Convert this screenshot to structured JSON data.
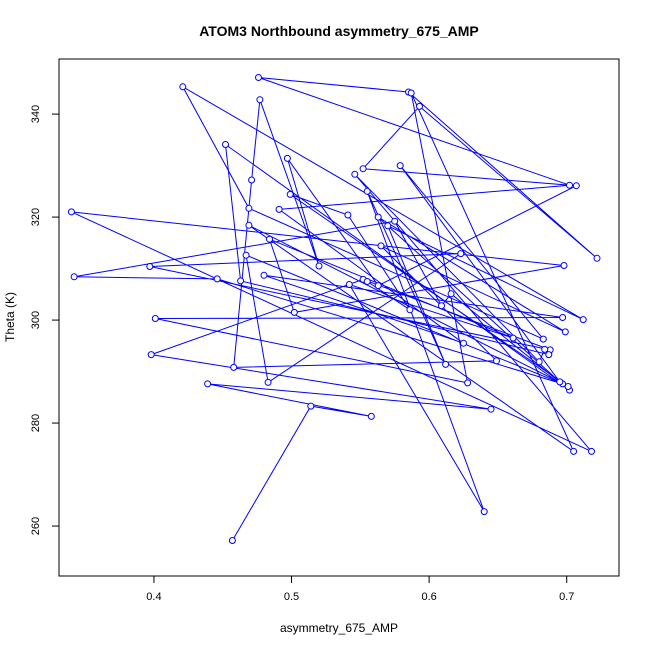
{
  "chart_data": {
    "type": "line",
    "title": "ATOM3 Northbound asymmetry_675_AMP",
    "xlabel": "asymmetry_675_AMP",
    "ylabel": "Theta (K)",
    "xlim": [
      0.331,
      0.738
    ],
    "ylim": [
      250.3,
      350.7
    ],
    "x_ticks": [
      "0.4",
      "0.5",
      "0.6",
      "0.7"
    ],
    "y_ticks": [
      "260",
      "280",
      "300",
      "320",
      "340"
    ],
    "grid": false,
    "legend": "none",
    "colors": {
      "series": "#0000ff",
      "axes": "#000000"
    },
    "series": [
      {
        "x": [
          0.457,
          0.514,
          0.558,
          0.439,
          0.645,
          0.398,
          0.552,
          0.688,
          0.397,
          0.623,
          0.483,
          0.467,
          0.697,
          0.446,
          0.342,
          0.575,
          0.609,
          0.616,
          0.702,
          0.452,
          0.463,
          0.687,
          0.684,
          0.68,
          0.546,
          0.718,
          0.34,
          0.698,
          0.502,
          0.484,
          0.661,
          0.542,
          0.64,
          0.555,
          0.612,
          0.57,
          0.712,
          0.421,
          0.469,
          0.683,
          0.579,
          0.695,
          0.563,
          0.699,
          0.565,
          0.649,
          0.458,
          0.471,
          0.477,
          0.52,
          0.497,
          0.563,
          0.707,
          0.552,
          0.593,
          0.722,
          0.585,
          0.476,
          0.702,
          0.491,
          0.625,
          0.48,
          0.697,
          0.401,
          0.628,
          0.587,
          0.705,
          0.469,
          0.701,
          0.499,
          0.541,
          0.586,
          0.555
        ],
        "y": [
          257.2,
          283.3,
          281.3,
          287.6,
          282.7,
          293.3,
          307.9,
          294.2,
          310.4,
          312.9,
          287.9,
          312.6,
          287.6,
          308.0,
          308.4,
          319.2,
          302.8,
          305.1,
          286.4,
          334.1,
          307.6,
          293.3,
          294.3,
          291.9,
          328.3,
          274.5,
          321.0,
          310.6,
          301.5,
          315.7,
          296.5,
          306.9,
          262.8,
          325.0,
          291.4,
          318.3,
          300.1,
          345.3,
          321.7,
          296.3,
          330.0,
          288.0,
          320.0,
          297.7,
          314.4,
          292.1,
          290.8,
          327.2,
          342.8,
          310.5,
          331.4,
          306.7,
          326.1,
          329.4,
          341.5,
          312.0,
          344.3,
          347.1,
          326.2,
          321.5,
          295.5,
          308.7,
          300.5,
          300.3,
          287.8,
          344.1,
          274.5,
          318.4,
          287.1,
          324.4,
          320.4,
          302.0,
          307.5
        ]
      }
    ]
  }
}
